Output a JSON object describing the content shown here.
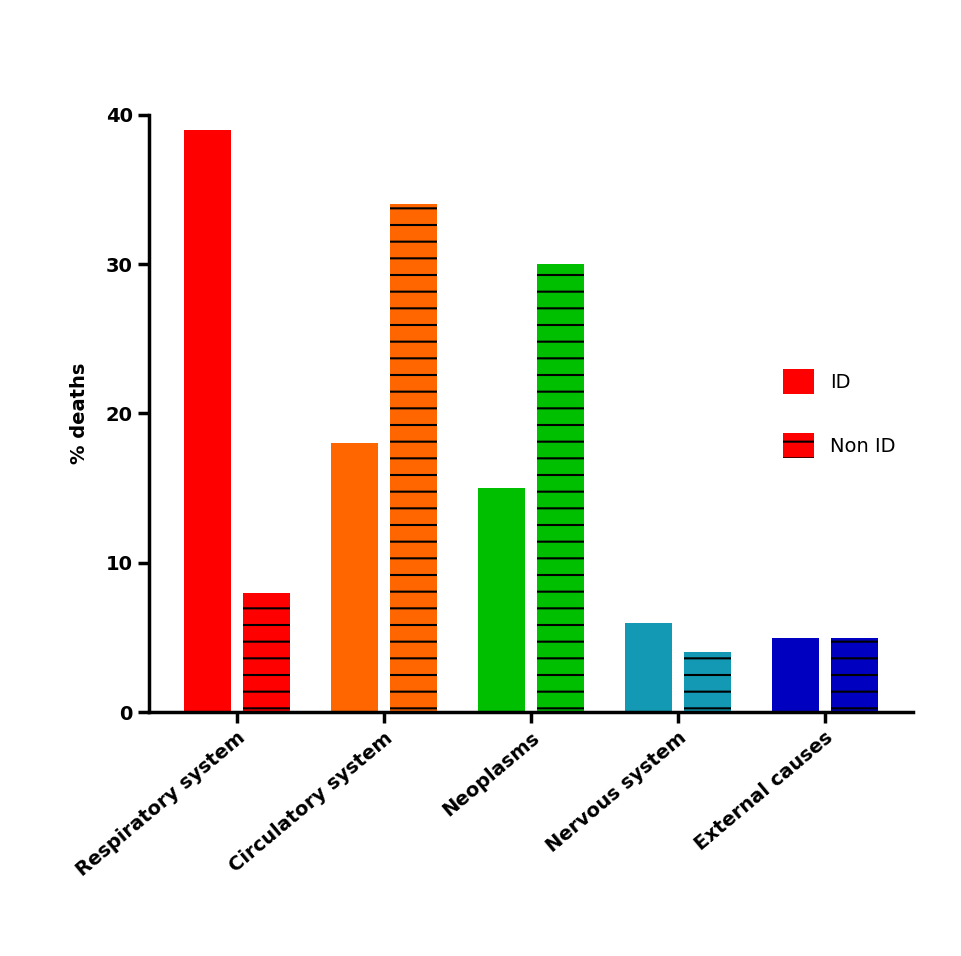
{
  "chart_data": {
    "type": "bar",
    "y_label": "% deaths",
    "categories": [
      "Respiratory system",
      "Circulatory system",
      "Neoplasms",
      "Nervous system",
      "External causes"
    ],
    "series": [
      {
        "name": "ID",
        "colors": [
          "#ff0000",
          "#ff6600",
          "#00bf00",
          "#1399b3",
          "#0000c0"
        ],
        "values": [
          39,
          18,
          15,
          6,
          5
        ]
      },
      {
        "name": "Non ID",
        "colors": [
          "#ff0000",
          "#ff6600",
          "#00bf00",
          "#1399b3",
          "#0000c0"
        ],
        "values": [
          8,
          34,
          30,
          4,
          5
        ]
      }
    ],
    "ylim": [
      0,
      40
    ],
    "yticks": [
      0,
      10,
      20,
      30,
      40
    ],
    "legend": "right",
    "grid": false
  }
}
